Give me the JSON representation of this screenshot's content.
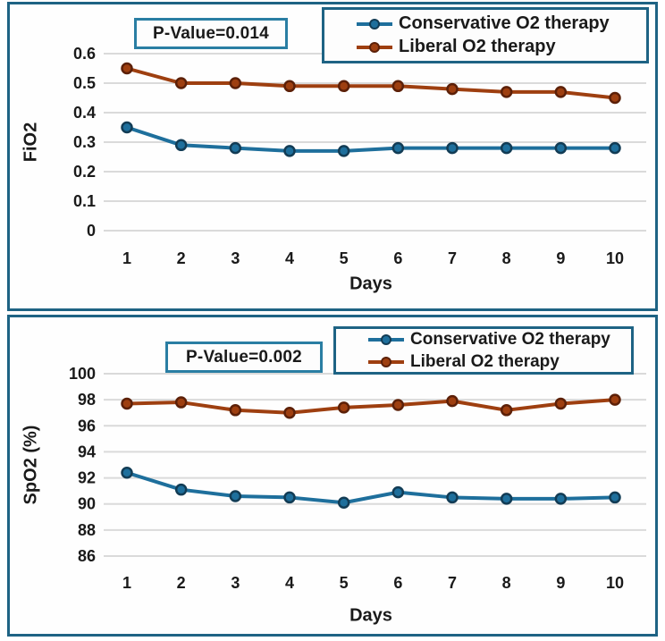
{
  "colors": {
    "panel_border": "#1e6384",
    "annotation_border": "#2a7ea3",
    "legend_border": "#1e6384",
    "grid": "#dadada",
    "text": "#1a1a1a",
    "conservative": "#1e6f9c",
    "liberal": "#9e3f10"
  },
  "chart_data": [
    {
      "type": "line",
      "annotation": "P-Value=0.014",
      "xlabel": "Days",
      "ylabel": "FiO2",
      "x": [
        1,
        2,
        3,
        4,
        5,
        6,
        7,
        8,
        9,
        10
      ],
      "ylim": [
        0,
        0.6
      ],
      "yticks": [
        0,
        0.1,
        0.2,
        0.3,
        0.4,
        0.5,
        0.6
      ],
      "ytick_labels": [
        "0",
        "0.1",
        "0.2",
        "0.3",
        "0.4",
        "0.5",
        "0.6"
      ],
      "grid": true,
      "legend_position": "top-right",
      "series": [
        {
          "name": "Conservative O2 therapy",
          "color": "#1e6f9c",
          "marker_color": "#123c55",
          "values": [
            0.35,
            0.29,
            0.28,
            0.27,
            0.27,
            0.28,
            0.28,
            0.28,
            0.28,
            0.28
          ]
        },
        {
          "name": "Liberal O2 therapy",
          "color": "#9e3f10",
          "marker_color": "#5c2008",
          "values": [
            0.55,
            0.5,
            0.5,
            0.49,
            0.49,
            0.49,
            0.48,
            0.47,
            0.47,
            0.45
          ]
        }
      ]
    },
    {
      "type": "line",
      "annotation": "P-Value=0.002",
      "xlabel": "Days",
      "ylabel": "SpO2 (%)",
      "x": [
        1,
        2,
        3,
        4,
        5,
        6,
        7,
        8,
        9,
        10
      ],
      "ylim": [
        86,
        100
      ],
      "yticks": [
        86,
        88,
        90,
        92,
        94,
        96,
        98,
        100
      ],
      "ytick_labels": [
        "86",
        "88",
        "90",
        "92",
        "94",
        "96",
        "98",
        "100"
      ],
      "grid": true,
      "legend_position": "top-right",
      "series": [
        {
          "name": "Conservative O2 therapy",
          "color": "#1e6f9c",
          "marker_color": "#123c55",
          "values": [
            92.4,
            91.1,
            90.6,
            90.5,
            90.1,
            90.9,
            90.5,
            90.4,
            90.4,
            90.5
          ]
        },
        {
          "name": "Liberal O2 therapy",
          "color": "#9e3f10",
          "marker_color": "#5c2008",
          "values": [
            97.7,
            97.8,
            97.2,
            97.0,
            97.4,
            97.6,
            97.9,
            97.2,
            97.7,
            98.0
          ]
        }
      ]
    }
  ]
}
